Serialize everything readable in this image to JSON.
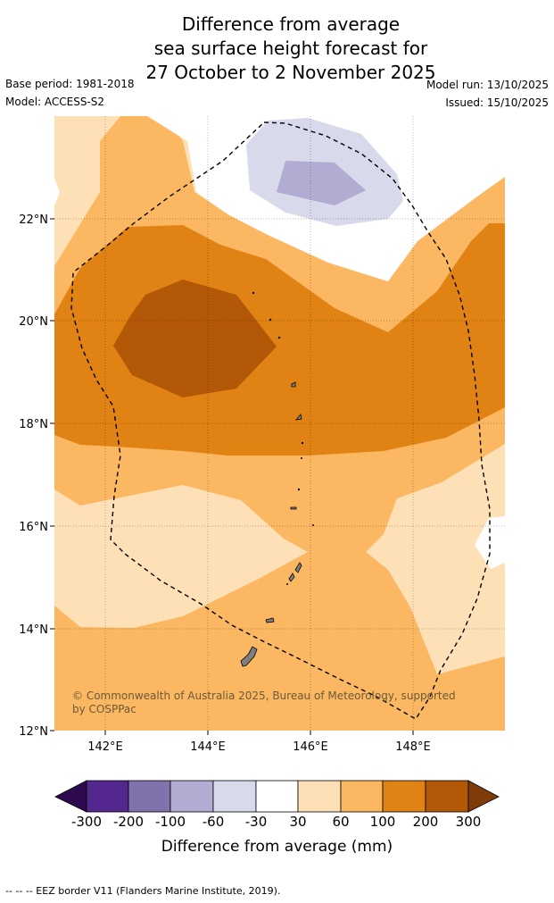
{
  "title": {
    "line1": "Difference from average",
    "line2": "sea surface height forecast for",
    "line3": "27 October to 2 November 2025"
  },
  "meta": {
    "base_period": "Base period: 1981-2018",
    "model": "Model: ACCESS-S2",
    "model_run": "Model run: 13/10/2025",
    "issued": "Issued: 15/10/2025"
  },
  "map": {
    "lat_ticks": [
      "22°N",
      "20°N",
      "18°N",
      "16°N",
      "14°N",
      "12°N"
    ],
    "lon_ticks": [
      "142°E",
      "144°E",
      "146°E",
      "148°E"
    ],
    "copyright": "© Commonwealth of Australia 2025, Bureau of Meteorology, supported by COSPPac",
    "extent": {
      "lon": [
        141,
        149.7
      ],
      "lat": [
        12,
        23.95
      ]
    }
  },
  "colorbar": {
    "label": "Difference from average (mm)",
    "ticks": [
      "-300",
      "-200",
      "-100",
      "-60",
      "-30",
      "30",
      "60",
      "100",
      "200",
      "300"
    ],
    "colors": {
      "lt_-300": "#2d0a4e",
      "-300_-200": "#54278f",
      "-200_-100": "#8073ac",
      "-100_-60": "#b2abd2",
      "-60_-30": "#d8daeb",
      "-30_30": "#ffffff",
      "30_60": "#fee0b6",
      "60_100": "#fbb761",
      "100_200": "#e08214",
      "200_300": "#b35806",
      "gt_300": "#7f3b08"
    }
  },
  "legend": {
    "eez": "--  --  -- EEZ border V11 (Flanders Marine Institute, 2019)."
  }
}
